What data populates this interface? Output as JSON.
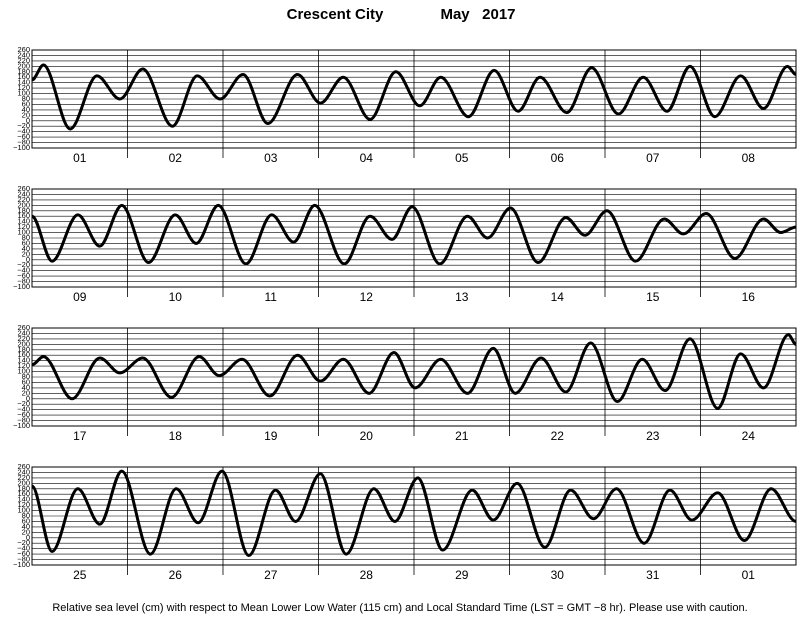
{
  "header": {
    "place": "Crescent City",
    "period": "May   2017"
  },
  "footnote": "Relative sea level (cm) with respect to Mean Lower Low Water (115 cm) and Local Standard Time (LST = GMT −8 hr). Please use with caution.",
  "chart_data": [
    {
      "type": "line",
      "categories": [
        "01",
        "02",
        "03",
        "04",
        "05",
        "06",
        "07",
        "08"
      ],
      "xlim": [
        0,
        8
      ],
      "ylim": [
        -100,
        260
      ],
      "yticks": [
        260,
        240,
        220,
        200,
        180,
        160,
        140,
        120,
        100,
        80,
        60,
        40,
        20,
        0,
        {
          "value": -20,
          "label": "−20"
        },
        {
          "value": -40,
          "label": "−40"
        },
        {
          "value": -60,
          "label": "−60"
        },
        {
          "value": -80,
          "label": "−80"
        },
        {
          "value": -100,
          "label": "−100"
        }
      ],
      "x": [
        0,
        0.12,
        0.4,
        0.68,
        0.92,
        1.16,
        1.47,
        1.73,
        1.97,
        2.21,
        2.47,
        2.78,
        3.02,
        3.26,
        3.54,
        3.81,
        4.06,
        4.28,
        4.57,
        4.84,
        5.09,
        5.32,
        5.6,
        5.86,
        6.14,
        6.4,
        6.65,
        6.89,
        7.15,
        7.42,
        7.66,
        7.91,
        8.0
      ],
      "series": [
        {
          "color": "#000000",
          "values": [
            150,
            205,
            -30,
            165,
            80,
            190,
            -20,
            165,
            80,
            170,
            -10,
            170,
            65,
            160,
            5,
            180,
            55,
            160,
            15,
            185,
            35,
            160,
            30,
            195,
            25,
            160,
            35,
            200,
            15,
            165,
            45,
            200,
            170
          ]
        }
      ]
    },
    {
      "type": "line",
      "categories": [
        "09",
        "10",
        "11",
        "12",
        "13",
        "14",
        "15",
        "16"
      ],
      "xlim": [
        0,
        8
      ],
      "ylim": [
        -100,
        260
      ],
      "yticks": [
        260,
        240,
        220,
        200,
        180,
        160,
        140,
        120,
        100,
        80,
        60,
        40,
        20,
        0,
        {
          "value": -20,
          "label": "−20"
        },
        {
          "value": -40,
          "label": "−40"
        },
        {
          "value": -60,
          "label": "−60"
        },
        {
          "value": -80,
          "label": "−80"
        },
        {
          "value": -100,
          "label": "−100"
        }
      ],
      "x": [
        0,
        0.21,
        0.48,
        0.71,
        0.94,
        1.22,
        1.5,
        1.72,
        1.95,
        2.24,
        2.51,
        2.74,
        2.96,
        3.27,
        3.54,
        3.77,
        3.98,
        4.27,
        4.56,
        4.77,
        5.01,
        5.3,
        5.59,
        5.79,
        6.02,
        6.32,
        6.62,
        6.82,
        7.06,
        7.36,
        7.66,
        7.84,
        8.0
      ],
      "series": [
        {
          "color": "#000000",
          "values": [
            160,
            -5,
            165,
            50,
            200,
            -10,
            165,
            60,
            200,
            -15,
            165,
            65,
            200,
            -15,
            160,
            75,
            195,
            -15,
            160,
            80,
            190,
            -10,
            155,
            90,
            180,
            -5,
            150,
            95,
            170,
            5,
            150,
            100,
            120
          ]
        }
      ]
    },
    {
      "type": "line",
      "categories": [
        "17",
        "18",
        "19",
        "20",
        "21",
        "22",
        "23",
        "24"
      ],
      "xlim": [
        0,
        8
      ],
      "ylim": [
        -100,
        260
      ],
      "yticks": [
        260,
        240,
        220,
        200,
        180,
        160,
        140,
        120,
        100,
        80,
        60,
        40,
        20,
        0,
        {
          "value": -20,
          "label": "−20"
        },
        {
          "value": -40,
          "label": "−40"
        },
        {
          "value": -60,
          "label": "−60"
        },
        {
          "value": -80,
          "label": "−80"
        },
        {
          "value": -100,
          "label": "−100"
        }
      ],
      "x": [
        0,
        0.12,
        0.42,
        0.71,
        0.92,
        1.16,
        1.46,
        1.75,
        1.96,
        2.2,
        2.49,
        2.78,
        3.02,
        3.26,
        3.53,
        3.79,
        4.01,
        4.28,
        4.56,
        4.83,
        5.06,
        5.33,
        5.59,
        5.85,
        6.13,
        6.39,
        6.63,
        6.89,
        7.18,
        7.42,
        7.66,
        7.92,
        8.0
      ],
      "series": [
        {
          "color": "#000000",
          "values": [
            125,
            155,
            0,
            150,
            95,
            150,
            5,
            155,
            85,
            145,
            10,
            160,
            65,
            145,
            20,
            170,
            40,
            145,
            20,
            185,
            20,
            150,
            25,
            205,
            -10,
            145,
            30,
            220,
            -35,
            165,
            40,
            235,
            200
          ]
        }
      ]
    },
    {
      "type": "line",
      "categories": [
        "25",
        "26",
        "27",
        "28",
        "29",
        "30",
        "31",
        "01"
      ],
      "xlim": [
        0,
        8
      ],
      "ylim": [
        -100,
        260
      ],
      "yticks": [
        260,
        240,
        220,
        200,
        180,
        160,
        140,
        120,
        100,
        80,
        60,
        40,
        20,
        0,
        {
          "value": -20,
          "label": "−20"
        },
        {
          "value": -40,
          "label": "−40"
        },
        {
          "value": -60,
          "label": "−60"
        },
        {
          "value": -80,
          "label": "−80"
        },
        {
          "value": -100,
          "label": "−100"
        }
      ],
      "x": [
        0,
        0.21,
        0.48,
        0.71,
        0.94,
        1.24,
        1.51,
        1.74,
        1.99,
        2.27,
        2.55,
        2.76,
        3.02,
        3.29,
        3.58,
        3.8,
        4.04,
        4.3,
        4.61,
        4.83,
        5.08,
        5.37,
        5.64,
        5.88,
        6.12,
        6.41,
        6.68,
        6.91,
        7.18,
        7.46,
        7.74,
        8.0
      ],
      "series": [
        {
          "color": "#000000",
          "values": [
            190,
            -50,
            180,
            50,
            245,
            -60,
            180,
            55,
            245,
            -65,
            175,
            60,
            235,
            -60,
            180,
            60,
            220,
            -45,
            175,
            65,
            200,
            -35,
            175,
            70,
            180,
            -20,
            175,
            65,
            165,
            -10,
            180,
            60
          ]
        }
      ]
    }
  ]
}
